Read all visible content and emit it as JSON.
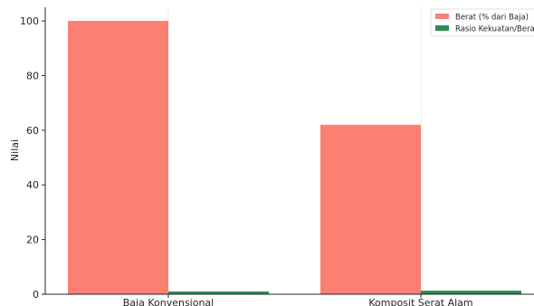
{
  "chart_data": {
    "type": "bar",
    "title": "",
    "xlabel": "",
    "ylabel": "Nilai",
    "categories": [
      "Baja Konvensional",
      "Komposit Serat Alam"
    ],
    "series": [
      {
        "name": "Berat (% dari Baja)",
        "values": [
          100,
          62
        ],
        "color": "#fa8072"
      },
      {
        "name": "Rasio Kekuatan/Berat",
        "values": [
          1.0,
          1.3
        ],
        "color": "#2e8b57"
      }
    ],
    "ylim": [
      0,
      105
    ],
    "yticks": [
      0,
      20,
      40,
      60,
      80,
      100
    ],
    "grid": "vertical-at-categories",
    "legend_position": "top-right"
  }
}
